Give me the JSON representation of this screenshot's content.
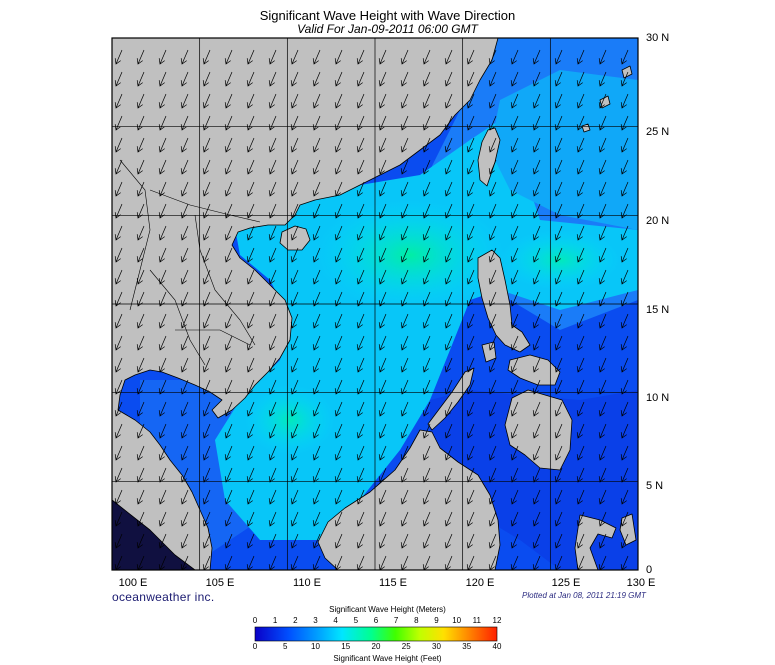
{
  "title": "Significant Wave Height with Wave Direction",
  "subtitle": "Valid For Jan-09-2011 06:00 GMT",
  "branding": "oceanweather inc.",
  "plotted": "Plotted at Jan 08, 2011 21:19 GMT",
  "map": {
    "lon_range": [
      100,
      130
    ],
    "lat_range": [
      0,
      30
    ],
    "lat_labels": [
      "30 N",
      "25 N",
      "20 N",
      "15 N",
      "10 N",
      "5 N",
      "0"
    ],
    "lon_labels": [
      "100 E",
      "105 E",
      "110 E",
      "115 E",
      "120 E",
      "125 E",
      "130 E"
    ],
    "grid": true,
    "land_color": "#c0c0c0",
    "wave_direction": "southwest"
  },
  "colorbar": {
    "title_meters": "Significant Wave Height (Meters)",
    "title_feet": "Significant Wave Height (Feet)",
    "meters_ticks": [
      "0",
      "1",
      "2",
      "3",
      "4",
      "5",
      "6",
      "7",
      "8",
      "9",
      "10",
      "11",
      "12"
    ],
    "feet_ticks": [
      "0",
      "5",
      "10",
      "15",
      "20",
      "25",
      "30",
      "35",
      "40"
    ],
    "colors": [
      "#0a00c8",
      "#0050ff",
      "#00a0ff",
      "#00e6ff",
      "#00ff90",
      "#40ff00",
      "#c0ff00",
      "#ffe000",
      "#ff8000",
      "#ff2000"
    ]
  }
}
